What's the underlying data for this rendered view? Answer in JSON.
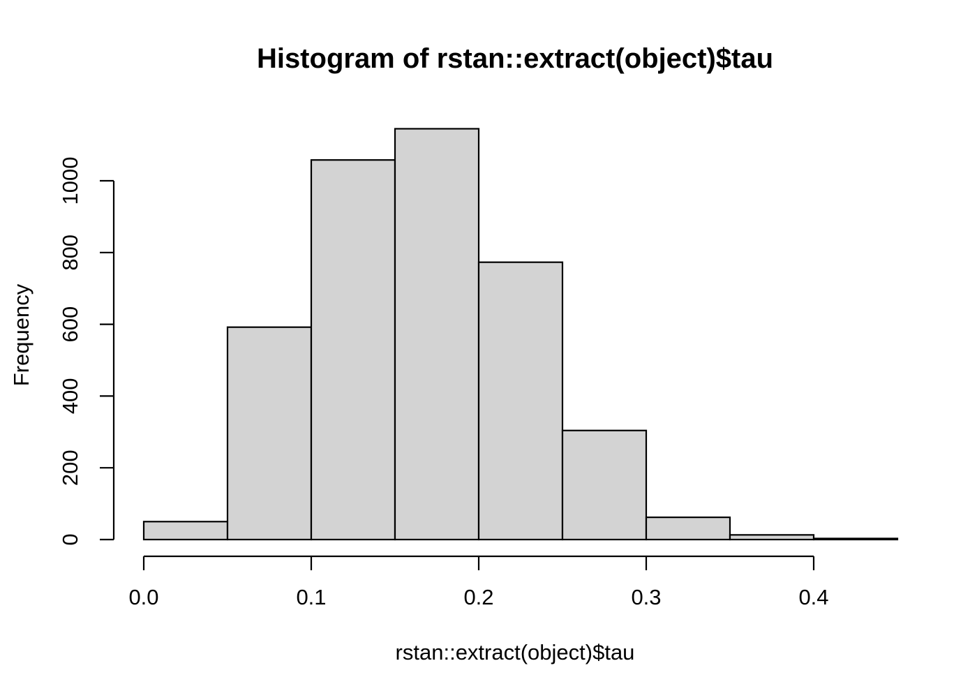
{
  "title": "Histogram of rstan::extract(object)$tau",
  "x_axis_label": "rstan::extract(object)$tau",
  "y_axis_label": "Frequency",
  "colors": {
    "background": "#ffffff",
    "bar_fill": "#d3d3d3",
    "bar_border": "#000000",
    "axis": "#000000",
    "text": "#000000"
  },
  "chart_data": {
    "type": "bar",
    "subtype": "histogram",
    "title": "Histogram of rstan::extract(object)$tau",
    "xlabel": "rstan::extract(object)$tau",
    "ylabel": "Frequency",
    "bin_edges": [
      0.0,
      0.05,
      0.1,
      0.15,
      0.2,
      0.25,
      0.3,
      0.35,
      0.4,
      0.45
    ],
    "categories": [
      "0.00-0.05",
      "0.05-0.10",
      "0.10-0.15",
      "0.15-0.20",
      "0.20-0.25",
      "0.25-0.30",
      "0.30-0.35",
      "0.35-0.40",
      "0.40-0.45"
    ],
    "values": [
      50,
      592,
      1058,
      1145,
      773,
      304,
      62,
      13,
      3
    ],
    "x_ticks": {
      "values": [
        0.0,
        0.1,
        0.2,
        0.3,
        0.4
      ],
      "labels": [
        "0.0",
        "0.1",
        "0.2",
        "0.3",
        "0.4"
      ]
    },
    "y_ticks": {
      "values": [
        0,
        200,
        400,
        600,
        800,
        1000
      ],
      "labels": [
        "0",
        "200",
        "400",
        "600",
        "800",
        "1000"
      ]
    },
    "xlim": [
      0.0,
      0.45
    ],
    "ylim": [
      0,
      1145
    ],
    "grid": false,
    "legend": false,
    "bar_fill": "#d3d3d3",
    "bar_border": "#000000"
  }
}
